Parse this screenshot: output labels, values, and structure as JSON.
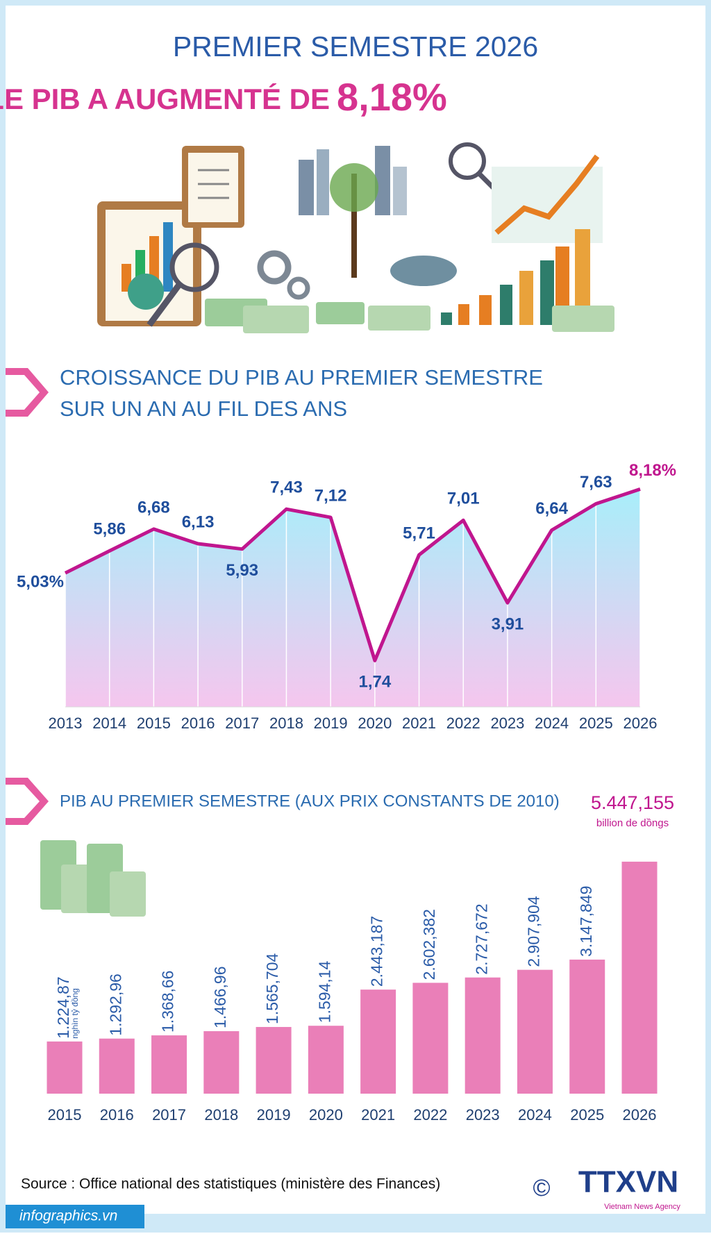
{
  "header": {
    "title": "PREMIER SEMESTRE 2026",
    "subtitle": "LE PIB A AUGMENTÉ DE",
    "highlight": "8,18%"
  },
  "chart_data": [
    {
      "type": "line",
      "title": "CROISSANCE DU PIB AU PREMIER SEMESTRE",
      "subtitle": "SUR UN AN AU FIL DES ANS",
      "categories": [
        "2013",
        "2014",
        "2015",
        "2016",
        "2017",
        "2018",
        "2019",
        "2020",
        "2021",
        "2022",
        "2023",
        "2024",
        "2025",
        "2026"
      ],
      "values": [
        5.03,
        5.86,
        6.68,
        6.13,
        5.93,
        7.43,
        7.12,
        1.74,
        5.71,
        7.01,
        3.91,
        6.64,
        7.63,
        8.18
      ],
      "value_labels": [
        "5,03%",
        "5,86",
        "6,68",
        "6,13",
        "5,93",
        "7,43",
        "7,12",
        "1,74",
        "5,71",
        "7,01",
        "3,91",
        "6,64",
        "7,63",
        "8,18%"
      ],
      "color": "#c0168e",
      "ylim": [
        0,
        9
      ]
    },
    {
      "type": "bar",
      "title": "PIB AU PREMIER SEMESTRE (AUX PRIX CONSTANTS DE 2010)",
      "categories": [
        "2015",
        "2016",
        "2017",
        "2018",
        "2019",
        "2020",
        "2021",
        "2022",
        "2023",
        "2024",
        "2025",
        "2026"
      ],
      "values": [
        1224.87,
        1292.96,
        1368.66,
        1466.96,
        1565.704,
        1594.14,
        2443.187,
        2602.382,
        2727.672,
        2907.904,
        3147.849,
        5447.155
      ],
      "value_labels": [
        "1.224,87",
        "1.292,96",
        "1.368,66",
        "1.466,96",
        "1.565,704",
        "1.594,14",
        "2.443,187",
        "2.602,382",
        "2.727,672",
        "2.907,904",
        "3.147,849",
        "5.447,155"
      ],
      "annotations": [
        "nghìn tỷ đồng",
        "billion de dồngs"
      ],
      "color": "#ea7fb8",
      "ylim": [
        0,
        6000
      ]
    }
  ],
  "footer": {
    "source": "Source : Office national des statistiques (ministère des Finances)",
    "site": "infographics.vn",
    "copyright": "©",
    "logo": "TTXVN",
    "agency": "Vietnam News Agency"
  }
}
